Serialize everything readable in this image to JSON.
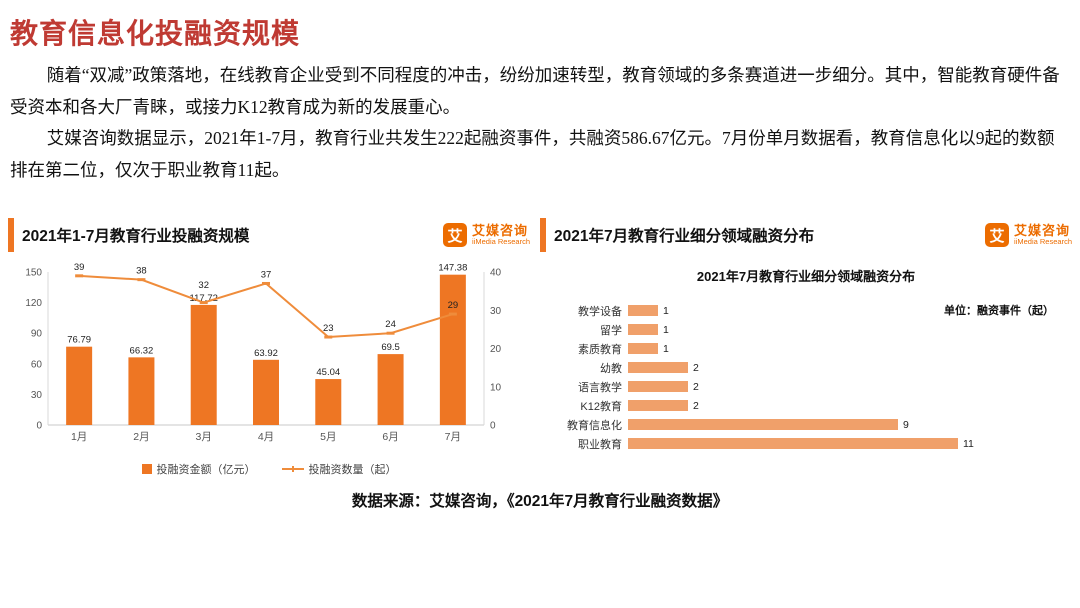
{
  "page": {
    "title": "教育信息化投融资规模",
    "paragraph1": "随着“双减”政策落地，在线教育企业受到不同程度的冲击，纷纷加速转型，教育领域的多条赛道进一步细分。其中，智能教育硬件备受资本和各大厂青睐，或接力K12教育成为新的发展重心。",
    "paragraph2": "艾媒咨询数据显示，2021年1-7月，教育行业共发生222起融资事件，共融资586.67亿元。7月份单月数据看，教育信息化以9起的数额排在第二位，仅次于职业教育11起。",
    "footer": "数据来源：艾媒咨询，《2021年7月教育行业融资数据》"
  },
  "branding": {
    "logo_glyph": "艾",
    "logo_name": "艾媒咨询",
    "logo_sub": "iiMedia Research"
  },
  "colors": {
    "title_red": "#bf3a33",
    "bar": "#ee7623",
    "line": "#ef8c3b",
    "hbar": "#f0a06a",
    "logo": "#ec6c00"
  },
  "panels": {
    "left": {
      "title": "2021年1-7月教育行业投融资规模"
    },
    "right": {
      "title": "2021年7月教育行业细分领域融资分布"
    }
  },
  "chart_data": [
    {
      "type": "bar",
      "subtype": "bar-line-combo",
      "title": "2021年1-7月教育行业投融资规模",
      "categories": [
        "1月",
        "2月",
        "3月",
        "4月",
        "5月",
        "6月",
        "7月"
      ],
      "series": [
        {
          "name": "投融资金额（亿元）",
          "type": "bar",
          "axis": "left",
          "values": [
            76.79,
            66.32,
            117.72,
            63.92,
            45.04,
            69.5,
            147.38
          ]
        },
        {
          "name": "投融资数量（起）",
          "type": "line",
          "axis": "right",
          "values": [
            39,
            38,
            32,
            37,
            23,
            24,
            29
          ]
        }
      ],
      "left_axis": {
        "min": 0,
        "max": 150,
        "ticks": [
          0,
          30,
          60,
          90,
          120,
          150
        ]
      },
      "right_axis": {
        "min": 0,
        "max": 40,
        "ticks": [
          0,
          10,
          20,
          30,
          40
        ]
      },
      "legend_position": "bottom",
      "grid": false
    },
    {
      "type": "bar",
      "orientation": "horizontal",
      "title": "2021年7月教育行业细分领域融资分布",
      "unit_note": "单位：融资事件（起）",
      "categories": [
        "教学设备",
        "留学",
        "素质教育",
        "幼教",
        "语言教学",
        "K12教育",
        "教育信息化",
        "职业教育"
      ],
      "values": [
        1,
        1,
        1,
        2,
        2,
        2,
        9,
        11
      ],
      "xlim": [
        0,
        11
      ],
      "data_labels": true
    }
  ]
}
